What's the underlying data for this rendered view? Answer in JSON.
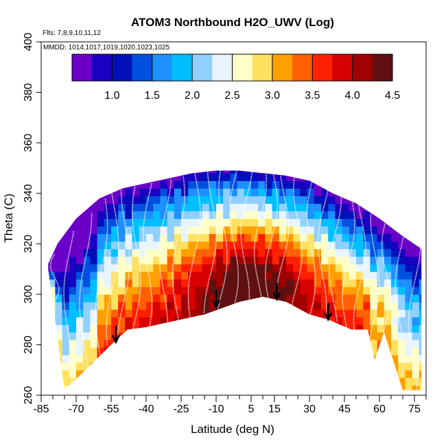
{
  "chart_data": {
    "type": "heatmap",
    "title": "ATOM3 Northbound H2O_UWV (Log)",
    "subtitle_flights": "Flts: 7,8,9,10,11,12",
    "subtitle_dates": "MMDD: 1014,1017,1019,1020,1023,1025",
    "xlabel": "Latitude (deg N)",
    "ylabel": "Theta (C)",
    "xlim": [
      -85,
      80
    ],
    "ylim": [
      260,
      400
    ],
    "x_tick_labels": [
      "-85",
      "-70",
      "-55",
      "-40",
      "-25",
      "-10",
      "5",
      "15",
      "30",
      "45",
      "60",
      "75"
    ],
    "x_tick_values": [
      -85,
      -70,
      -55,
      -40,
      -25,
      -10,
      5,
      15,
      30,
      45,
      60,
      75
    ],
    "y_ticks": [
      260,
      280,
      300,
      320,
      340,
      360,
      380,
      400
    ],
    "colorbar": {
      "range": [
        0.5,
        4.5
      ],
      "tick_values": [
        1.0,
        1.5,
        2.0,
        2.5,
        3.0,
        3.5,
        4.0,
        4.5
      ],
      "tick_labels": [
        "1.0",
        "1.5",
        "2.0",
        "2.5",
        "3.0",
        "3.5",
        "4.0",
        "4.5"
      ],
      "colors": [
        "#6a00c8",
        "#1a00c0",
        "#0010b8",
        "#0050e0",
        "#1e90ff",
        "#00bfff",
        "#8fd0ff",
        "#e8f4ff",
        "#ffffc8",
        "#ffe060",
        "#ffa000",
        "#ff6000",
        "#ff2000",
        "#d80000",
        "#a00000",
        "#601010"
      ]
    },
    "field": {
      "description": "log10 water vapor vs latitude and potential temperature",
      "lower_boundary_theta": [
        [
          -82,
          310
        ],
        [
          -75,
          262
        ],
        [
          -66,
          270
        ],
        [
          -55,
          280
        ],
        [
          -48,
          286
        ],
        [
          -40,
          287
        ],
        [
          -30,
          289
        ],
        [
          -15,
          292
        ],
        [
          0,
          297
        ],
        [
          10,
          299
        ],
        [
          20,
          297
        ],
        [
          30,
          292
        ],
        [
          38,
          290
        ],
        [
          48,
          286
        ],
        [
          55,
          286
        ],
        [
          58,
          274
        ],
        [
          62,
          285
        ],
        [
          70,
          262
        ],
        [
          78,
          262
        ]
      ],
      "upper_boundary_theta": [
        [
          -82,
          312
        ],
        [
          -78,
          320
        ],
        [
          -70,
          330
        ],
        [
          -60,
          338
        ],
        [
          -50,
          342
        ],
        [
          -40,
          344
        ],
        [
          -30,
          346
        ],
        [
          -20,
          348
        ],
        [
          -10,
          349
        ],
        [
          0,
          349
        ],
        [
          10,
          348
        ],
        [
          20,
          347
        ],
        [
          30,
          345
        ],
        [
          40,
          340
        ],
        [
          50,
          336
        ],
        [
          60,
          330
        ],
        [
          70,
          323
        ],
        [
          78,
          318
        ]
      ],
      "core_high_value_region": {
        "lat_center": 5,
        "theta_center": 308,
        "value": 4.2
      }
    },
    "annotations": {
      "arrows": [
        {
          "lat": -53,
          "theta": 281
        },
        {
          "lat": -10,
          "theta": 295
        },
        {
          "lat": 16,
          "theta": 298
        },
        {
          "lat": 38,
          "theta": 290
        }
      ],
      "flight_profiles_overlay": "white dotted vertical profile traces"
    }
  }
}
